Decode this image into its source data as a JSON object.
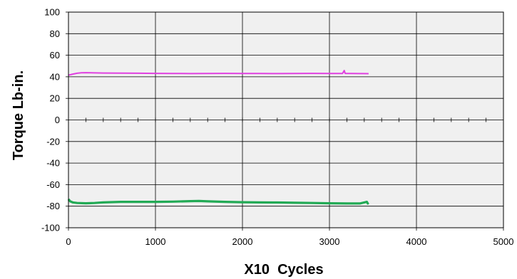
{
  "chart_data": {
    "type": "line",
    "title": "",
    "xlabel": "X10  Cycles",
    "ylabel": "Torque Lb-in.",
    "xlim": [
      0,
      5000
    ],
    "ylim": [
      -100,
      100
    ],
    "x_ticks": [
      0,
      1000,
      2000,
      3000,
      4000,
      5000
    ],
    "y_ticks": [
      100,
      80,
      60,
      40,
      20,
      0,
      -20,
      -40,
      -60,
      -80,
      -100
    ],
    "grid": true,
    "legend": "none",
    "plot_background": "#f0f0f0",
    "zero_line_minor_ticks_every": 200,
    "series": [
      {
        "color": "#e040e0",
        "x": [
          0,
          50,
          100,
          150,
          200,
          300,
          400,
          600,
          800,
          1000,
          1200,
          1400,
          1600,
          1800,
          2000,
          2200,
          2400,
          2600,
          2800,
          3000,
          3150,
          3170,
          3180,
          3190,
          3250,
          3350,
          3450
        ],
        "y": [
          41.5,
          42.5,
          43.3,
          43.7,
          43.8,
          43.6,
          43.5,
          43.4,
          43.3,
          43.2,
          43.1,
          43.0,
          43.1,
          43.2,
          43.1,
          43.1,
          43.0,
          43.1,
          43.2,
          43.1,
          43.1,
          45.8,
          43.2,
          43.1,
          43.1,
          43.0,
          42.9
        ]
      },
      {
        "color": "#22aa55",
        "x": [
          0,
          20,
          50,
          100,
          200,
          300,
          400,
          600,
          800,
          1000,
          1200,
          1400,
          1500,
          1600,
          1800,
          2000,
          2200,
          2400,
          2600,
          2800,
          3000,
          3200,
          3350,
          3430,
          3440,
          3450
        ],
        "y": [
          -73.5,
          -75.5,
          -76.5,
          -77.0,
          -77.3,
          -77.0,
          -76.5,
          -76.0,
          -76.0,
          -76.0,
          -75.8,
          -75.3,
          -75.2,
          -75.5,
          -76.0,
          -76.3,
          -76.5,
          -76.6,
          -76.8,
          -77.0,
          -77.3,
          -77.5,
          -77.5,
          -76.0,
          -77.5,
          -76.8
        ]
      }
    ]
  }
}
